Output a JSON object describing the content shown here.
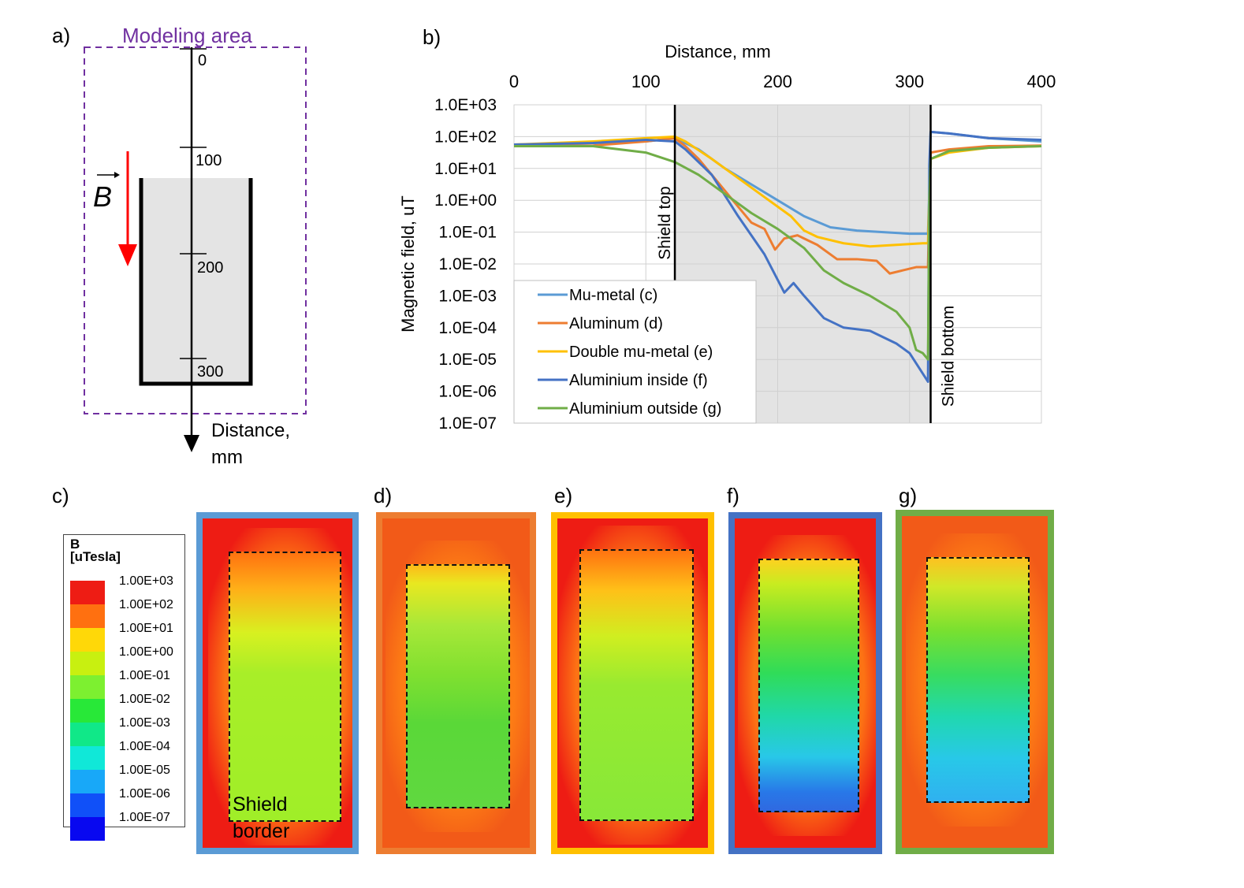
{
  "panels": {
    "a": "a)",
    "b": "b)",
    "c": "c)",
    "d": "d)",
    "e": "e)",
    "f": "f)",
    "g": "g)"
  },
  "diagram": {
    "modeling_area": "Modeling area",
    "field_symbol": "B",
    "ticks": [
      "0",
      "100",
      "200",
      "300"
    ],
    "axis_label_line1": "Distance,",
    "axis_label_line2": "mm",
    "colors": {
      "modeling_area": "#7030a0",
      "field_arrow": "#ff0000",
      "shield_fill": "#e4e4e4"
    }
  },
  "chart_data": {
    "type": "line",
    "title": "",
    "xlabel": "Distance, mm",
    "ylabel": "Magnetic field, uT",
    "x_ticks": [
      0,
      100,
      200,
      300,
      400
    ],
    "xlim": [
      0,
      400
    ],
    "y_scale": "log",
    "y_ticks": [
      "1.0E+03",
      "1.0E+02",
      "1.0E+01",
      "1.0E+00",
      "1.0E-01",
      "1.0E-02",
      "1.0E-03",
      "1.0E-04",
      "1.0E-05",
      "1.0E-06",
      "1.0E-07"
    ],
    "ylim_exp": [
      -7,
      3
    ],
    "shaded_region": [
      122,
      316
    ],
    "annotations": [
      {
        "text": "Shield top",
        "x": 122
      },
      {
        "text": "Shield bottom",
        "x": 316
      }
    ],
    "legend_position": "bottom-left",
    "series": [
      {
        "name": "Mu-metal (c)",
        "color": "#5b9bd5",
        "x": [
          0,
          60,
          100,
          122,
          140,
          160,
          180,
          200,
          220,
          240,
          260,
          280,
          300,
          314,
          315,
          316,
          330,
          360,
          400
        ],
        "log10_y": [
          1.75,
          1.8,
          1.85,
          1.95,
          1.6,
          1.0,
          0.5,
          0.0,
          -0.5,
          -0.85,
          -0.95,
          -1.0,
          -1.05,
          -1.05,
          0.3,
          2.15,
          2.1,
          1.95,
          1.85
        ]
      },
      {
        "name": "Aluminum (d)",
        "color": "#ed7d31",
        "x": [
          0,
          60,
          100,
          122,
          130,
          140,
          150,
          160,
          170,
          180,
          190,
          198,
          205,
          215,
          230,
          245,
          260,
          275,
          285,
          295,
          305,
          314,
          315,
          316,
          330,
          360,
          400
        ],
        "log10_y": [
          1.7,
          1.72,
          1.85,
          1.95,
          1.7,
          1.3,
          0.8,
          0.3,
          -0.2,
          -0.7,
          -0.9,
          -1.55,
          -1.2,
          -1.1,
          -1.4,
          -1.85,
          -1.85,
          -1.9,
          -2.3,
          -2.2,
          -2.1,
          -2.1,
          0.0,
          1.5,
          1.6,
          1.7,
          1.72
        ]
      },
      {
        "name": "Double mu-metal (e)",
        "color": "#ffc000",
        "x": [
          0,
          60,
          100,
          122,
          130,
          150,
          170,
          190,
          210,
          220,
          230,
          250,
          270,
          290,
          310,
          314,
          315,
          316,
          330,
          360,
          400
        ],
        "log10_y": [
          1.75,
          1.85,
          1.95,
          2.0,
          1.85,
          1.3,
          0.7,
          0.1,
          -0.5,
          -0.95,
          -1.15,
          -1.35,
          -1.45,
          -1.4,
          -1.35,
          -1.35,
          0.2,
          1.3,
          1.5,
          1.65,
          1.7
        ]
      },
      {
        "name": "Aluminium inside (f)",
        "color": "#4472c4",
        "x": [
          0,
          60,
          100,
          122,
          130,
          150,
          170,
          190,
          205,
          212,
          220,
          235,
          250,
          270,
          290,
          300,
          314,
          315,
          316,
          330,
          360,
          400
        ],
        "log10_y": [
          1.75,
          1.8,
          1.9,
          1.85,
          1.6,
          0.8,
          -0.5,
          -1.7,
          -2.9,
          -2.6,
          -3.0,
          -3.7,
          -4.0,
          -4.1,
          -4.5,
          -4.8,
          -5.7,
          1.1,
          2.15,
          2.1,
          1.95,
          1.9
        ]
      },
      {
        "name": "Aluminium outside (g)",
        "color": "#70ad47",
        "x": [
          0,
          60,
          100,
          122,
          140,
          160,
          180,
          200,
          220,
          235,
          250,
          270,
          290,
          300,
          305,
          310,
          314,
          315,
          316,
          330,
          360,
          400
        ],
        "log10_y": [
          1.7,
          1.7,
          1.5,
          1.2,
          0.8,
          0.2,
          -0.4,
          -0.9,
          -1.5,
          -2.2,
          -2.6,
          -3.0,
          -3.5,
          -4.0,
          -4.7,
          -4.8,
          -5.0,
          0.0,
          1.3,
          1.55,
          1.65,
          1.7
        ]
      }
    ]
  },
  "colorbar": {
    "title_line1": "B",
    "title_line2": "[uTesla]",
    "levels": [
      {
        "label": "1.00E+03",
        "color": "#ee1c14"
      },
      {
        "label": "1.00E+02",
        "color": "#ff7010"
      },
      {
        "label": "1.00E+01",
        "color": "#ffd808"
      },
      {
        "label": "1.00E+00",
        "color": "#c8f010"
      },
      {
        "label": "1.00E-01",
        "color": "#7df030"
      },
      {
        "label": "1.00E-02",
        "color": "#28e838"
      },
      {
        "label": "1.00E-03",
        "color": "#10e888"
      },
      {
        "label": "1.00E-04",
        "color": "#10e8d8"
      },
      {
        "label": "1.00E-05",
        "color": "#18a8f8"
      },
      {
        "label": "1.00E-06",
        "color": "#1050f8"
      },
      {
        "label": "1.00E-07",
        "color": "#0808f0"
      }
    ],
    "last_label": "1.00E-07"
  },
  "maps": {
    "shield_label_line1": "Shield",
    "shield_label_line2": "border",
    "frame_colors": {
      "c": "#5b9bd5",
      "d": "#ed7d31",
      "e": "#ffc000",
      "f": "#4472c4",
      "g": "#70ad47"
    }
  }
}
